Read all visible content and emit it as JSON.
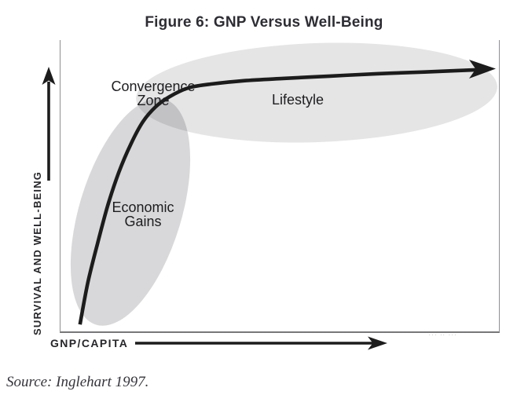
{
  "title": "Figure 6: GNP Versus Well-Being",
  "axes": {
    "x_label": "GNP/CAPITA",
    "y_label": "SURVIVAL AND WELL-BEING"
  },
  "annotations": {
    "convergence_zone": {
      "line1": "Convergence",
      "line2": "Zone"
    },
    "economic_gains": {
      "line1": "Economic",
      "line2": "Gains"
    },
    "lifestyle": "Lifestyle"
  },
  "source_citation": "Source: Inglehart 1997.",
  "micro_caption": "··· ·· ···",
  "colors": {
    "curve": "#1c1c1c",
    "title_text": "#2d2d34",
    "label_text": "#1d1d20",
    "box_border": "#8f8f92",
    "ellipse_light_fill": "#e2e2e5",
    "ellipse_dark_fill": "#d6d6d9",
    "ellipse_overlap": "#b5b5b9"
  },
  "chart_data": {
    "type": "line",
    "title": "Figure 6: GNP Versus Well-Being",
    "xlabel": "GNP/CAPITA",
    "ylabel": "SURVIVAL AND WELL-BEING",
    "x_axis": {
      "tick_labels": [],
      "range_norm": [
        0,
        1
      ],
      "arrow": true
    },
    "y_axis": {
      "tick_labels": [],
      "range_norm": [
        0,
        1
      ],
      "arrow": true
    },
    "gridlines": false,
    "legend": null,
    "series": [
      {
        "name": "Well-being vs GNP per capita (conceptual curve, ends in arrowhead)",
        "style": "thick black curve",
        "points_norm": [
          [
            0.046,
            0.029
          ],
          [
            0.064,
            0.172
          ],
          [
            0.086,
            0.306
          ],
          [
            0.109,
            0.434
          ],
          [
            0.134,
            0.547
          ],
          [
            0.161,
            0.643
          ],
          [
            0.189,
            0.721
          ],
          [
            0.218,
            0.772
          ],
          [
            0.25,
            0.807
          ],
          [
            0.293,
            0.837
          ],
          [
            0.346,
            0.85
          ],
          [
            0.418,
            0.861
          ],
          [
            0.507,
            0.869
          ],
          [
            0.614,
            0.877
          ],
          [
            0.721,
            0.885
          ],
          [
            0.829,
            0.891
          ],
          [
            0.957,
            0.899
          ]
        ]
      }
    ],
    "annotated_regions": [
      {
        "label": "Economic Gains",
        "shape": "tilted gray ellipse over the steep rising segment"
      },
      {
        "label": "Lifestyle",
        "shape": "wide horizontal gray ellipse over the flat segment"
      },
      {
        "label": "Convergence Zone",
        "shape": "darker overlap of the two ellipses at the curve's knee"
      }
    ]
  }
}
